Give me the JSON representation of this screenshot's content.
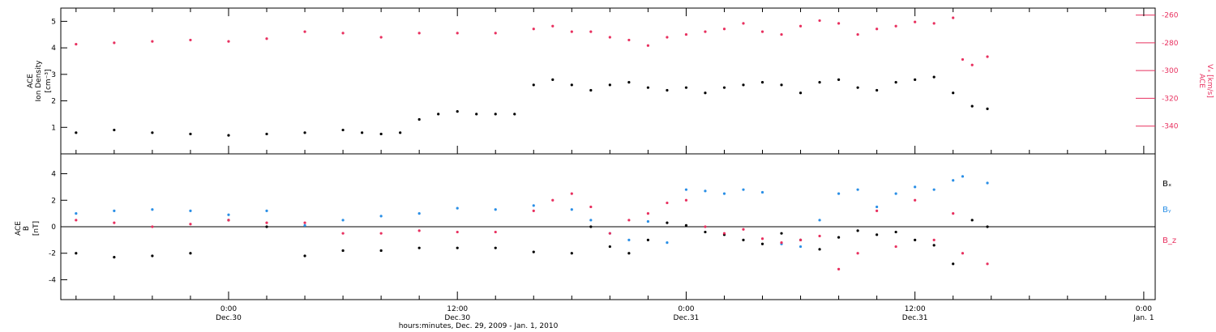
{
  "colors": {
    "black": "#000000",
    "pink": "#e8305f",
    "blue": "#2a8fe6"
  },
  "chart_data": [
    {
      "type": "scatter",
      "panel": "top",
      "ylabel_left": [
        "ACE",
        "Ion Density"
      ],
      "ylabel_left_units": "[cm⁻³]",
      "ylabel_right": "ACE",
      "ylabel_right_units": "Vₓ [km/s]",
      "ylim_left": [
        0,
        5.5
      ],
      "ylim_right": [
        -360,
        -255
      ],
      "yticks_left": [
        1,
        2,
        3,
        4,
        5
      ],
      "yticks_right": [
        -340,
        -320,
        -300,
        -280,
        -260
      ],
      "series": [
        {
          "name": "Ion Density",
          "axis": "left",
          "color": "black",
          "points": [
            [
              -8,
              0.8
            ],
            [
              -6,
              0.9
            ],
            [
              -4,
              0.8
            ],
            [
              -2,
              0.75
            ],
            [
              0,
              0.7
            ],
            [
              2,
              0.75
            ],
            [
              4,
              0.8
            ],
            [
              6,
              0.9
            ],
            [
              7,
              0.8
            ],
            [
              8,
              0.75
            ],
            [
              9,
              0.8
            ],
            [
              10,
              1.3
            ],
            [
              11,
              1.5
            ],
            [
              12,
              1.6
            ],
            [
              13,
              1.5
            ],
            [
              14,
              1.5
            ],
            [
              15,
              1.5
            ],
            [
              16,
              2.6
            ],
            [
              17,
              2.8
            ],
            [
              18,
              2.6
            ],
            [
              19,
              2.4
            ],
            [
              20,
              2.6
            ],
            [
              21,
              2.7
            ],
            [
              22,
              2.5
            ],
            [
              23,
              2.4
            ],
            [
              24,
              2.5
            ],
            [
              25,
              2.3
            ],
            [
              26,
              2.5
            ],
            [
              27,
              2.6
            ],
            [
              28,
              2.7
            ],
            [
              29,
              2.6
            ],
            [
              30,
              2.3
            ],
            [
              31,
              2.7
            ],
            [
              32,
              2.8
            ],
            [
              33,
              2.5
            ],
            [
              34,
              2.4
            ],
            [
              35,
              2.7
            ],
            [
              36,
              2.8
            ],
            [
              37,
              2.9
            ],
            [
              38,
              2.3
            ],
            [
              39,
              1.8
            ],
            [
              39.8,
              1.7
            ]
          ]
        },
        {
          "name": "Vx",
          "axis": "right",
          "color": "pink",
          "points": [
            [
              -8,
              -281
            ],
            [
              -6,
              -280
            ],
            [
              -4,
              -279
            ],
            [
              -2,
              -278
            ],
            [
              0,
              -279
            ],
            [
              2,
              -277
            ],
            [
              4,
              -272
            ],
            [
              6,
              -273
            ],
            [
              8,
              -276
            ],
            [
              10,
              -273
            ],
            [
              12,
              -273
            ],
            [
              14,
              -273
            ],
            [
              16,
              -270
            ],
            [
              17,
              -268
            ],
            [
              18,
              -272
            ],
            [
              19,
              -272
            ],
            [
              20,
              -276
            ],
            [
              21,
              -278
            ],
            [
              22,
              -282
            ],
            [
              23,
              -276
            ],
            [
              24,
              -274
            ],
            [
              25,
              -272
            ],
            [
              26,
              -270
            ],
            [
              27,
              -266
            ],
            [
              28,
              -272
            ],
            [
              29,
              -274
            ],
            [
              30,
              -268
            ],
            [
              31,
              -264
            ],
            [
              32,
              -266
            ],
            [
              33,
              -274
            ],
            [
              34,
              -270
            ],
            [
              35,
              -268
            ],
            [
              36,
              -265
            ],
            [
              37,
              -266
            ],
            [
              38,
              -262
            ],
            [
              38.5,
              -292
            ],
            [
              39,
              -296
            ],
            [
              39.8,
              -290
            ]
          ]
        }
      ]
    },
    {
      "type": "scatter",
      "panel": "bottom",
      "ylabel_left": [
        "ACE",
        "B"
      ],
      "ylabel_left_units": "[nT]",
      "ylim": [
        -5.5,
        5.5
      ],
      "yticks": [
        -4,
        -2,
        0,
        2,
        4
      ],
      "legend": [
        {
          "label": "Bₓ",
          "color": "black"
        },
        {
          "label": "Bᵧ",
          "color": "blue"
        },
        {
          "label": "B_z",
          "color": "pink"
        }
      ],
      "series": [
        {
          "name": "Bx",
          "color": "black",
          "points": [
            [
              -8,
              -2.0
            ],
            [
              -6,
              -2.3
            ],
            [
              -4,
              -2.2
            ],
            [
              -2,
              -2.0
            ],
            [
              0,
              0.5
            ],
            [
              2,
              0.0
            ],
            [
              4,
              -2.2
            ],
            [
              6,
              -1.8
            ],
            [
              8,
              -1.8
            ],
            [
              10,
              -1.6
            ],
            [
              12,
              -1.6
            ],
            [
              14,
              -1.6
            ],
            [
              16,
              -1.9
            ],
            [
              18,
              -2.0
            ],
            [
              19,
              0.0
            ],
            [
              20,
              -1.5
            ],
            [
              21,
              -2.0
            ],
            [
              22,
              -1.0
            ],
            [
              23,
              0.3
            ],
            [
              24,
              0.1
            ],
            [
              25,
              -0.4
            ],
            [
              26,
              -0.6
            ],
            [
              27,
              -1.0
            ],
            [
              28,
              -1.3
            ],
            [
              29,
              -0.5
            ],
            [
              30,
              -1.0
            ],
            [
              31,
              -1.7
            ],
            [
              32,
              -0.8
            ],
            [
              33,
              -0.3
            ],
            [
              34,
              -0.6
            ],
            [
              35,
              -0.4
            ],
            [
              36,
              -1.0
            ],
            [
              37,
              -1.4
            ],
            [
              38,
              -2.8
            ],
            [
              39,
              0.5
            ],
            [
              39.8,
              0.0
            ]
          ]
        },
        {
          "name": "By",
          "color": "blue",
          "points": [
            [
              -8,
              1.0
            ],
            [
              -6,
              1.2
            ],
            [
              -4,
              1.3
            ],
            [
              -2,
              1.2
            ],
            [
              0,
              0.9
            ],
            [
              2,
              1.2
            ],
            [
              4,
              0.1
            ],
            [
              6,
              0.5
            ],
            [
              8,
              0.8
            ],
            [
              10,
              1.0
            ],
            [
              12,
              1.4
            ],
            [
              14,
              1.3
            ],
            [
              16,
              1.6
            ],
            [
              18,
              1.3
            ],
            [
              19,
              0.5
            ],
            [
              20,
              -0.5
            ],
            [
              21,
              -1.0
            ],
            [
              22,
              0.4
            ],
            [
              23,
              -1.2
            ],
            [
              24,
              2.8
            ],
            [
              25,
              2.7
            ],
            [
              26,
              2.5
            ],
            [
              27,
              2.8
            ],
            [
              28,
              2.6
            ],
            [
              29,
              -1.3
            ],
            [
              30,
              -1.5
            ],
            [
              31,
              0.5
            ],
            [
              32,
              2.5
            ],
            [
              33,
              2.8
            ],
            [
              34,
              1.5
            ],
            [
              35,
              2.5
            ],
            [
              36,
              3.0
            ],
            [
              37,
              2.8
            ],
            [
              38,
              3.5
            ],
            [
              38.5,
              3.8
            ],
            [
              39.8,
              3.3
            ]
          ]
        },
        {
          "name": "Bz",
          "color": "pink",
          "points": [
            [
              -8,
              0.5
            ],
            [
              -6,
              0.3
            ],
            [
              -4,
              0.0
            ],
            [
              -2,
              0.2
            ],
            [
              0,
              0.5
            ],
            [
              2,
              0.3
            ],
            [
              4,
              0.3
            ],
            [
              6,
              -0.5
            ],
            [
              8,
              -0.5
            ],
            [
              10,
              -0.3
            ],
            [
              12,
              -0.4
            ],
            [
              14,
              -0.4
            ],
            [
              16,
              1.2
            ],
            [
              17,
              2.0
            ],
            [
              18,
              2.5
            ],
            [
              19,
              1.5
            ],
            [
              20,
              -0.5
            ],
            [
              21,
              0.5
            ],
            [
              22,
              1.0
            ],
            [
              23,
              1.8
            ],
            [
              24,
              2.0
            ],
            [
              25,
              0.0
            ],
            [
              26,
              -0.5
            ],
            [
              27,
              -0.2
            ],
            [
              28,
              -0.9
            ],
            [
              29,
              -1.2
            ],
            [
              30,
              -1.0
            ],
            [
              31,
              -0.7
            ],
            [
              32,
              -3.2
            ],
            [
              33,
              -2.0
            ],
            [
              34,
              1.2
            ],
            [
              35,
              -1.5
            ],
            [
              36,
              2.0
            ],
            [
              37,
              -1.0
            ],
            [
              38,
              1.0
            ],
            [
              38.5,
              -2.0
            ],
            [
              39.8,
              -2.8
            ]
          ]
        }
      ]
    }
  ],
  "x_axis": {
    "range_hours": [
      -8.8,
      48.6
    ],
    "ticks": [
      {
        "hour": 0,
        "time": "0:00",
        "date": "Dec.30"
      },
      {
        "hour": 12,
        "time": "12:00",
        "date": "Dec.30"
      },
      {
        "hour": 24,
        "time": "0:00",
        "date": "Dec.31"
      },
      {
        "hour": 36,
        "time": "12:00",
        "date": "Dec.31"
      },
      {
        "hour": 48,
        "time": "0:00",
        "date": "Jan. 1"
      }
    ],
    "title": "hours:minutes, Dec. 29, 2009 - Jan. 1, 2010"
  }
}
